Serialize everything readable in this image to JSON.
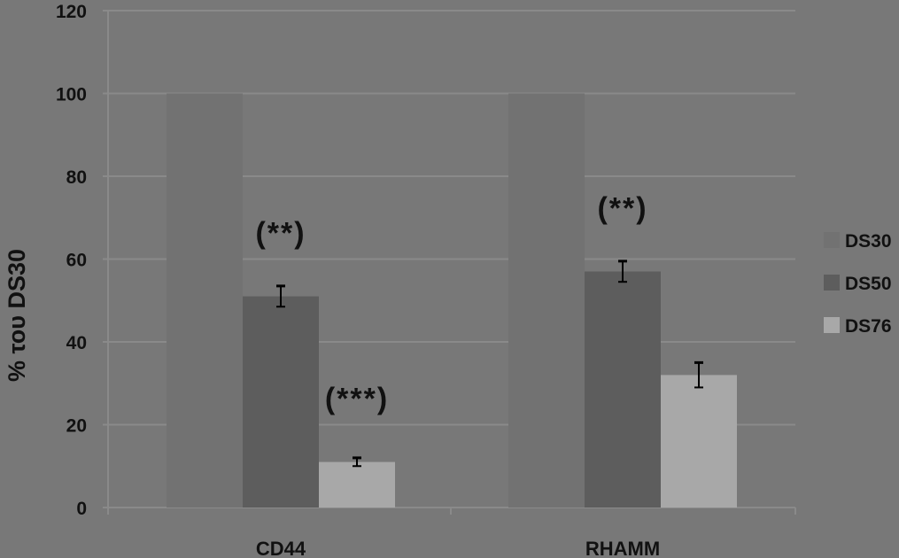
{
  "chart_data": {
    "type": "bar",
    "title": "",
    "xlabel": "",
    "ylabel": "% του DS30",
    "ylim": [
      0,
      120
    ],
    "yticks": [
      0,
      20,
      40,
      60,
      80,
      100,
      120
    ],
    "grid": true,
    "legend_position": "right",
    "categories": [
      "CD44",
      "RHAMM"
    ],
    "series": [
      {
        "name": "DS30",
        "values": [
          100,
          100
        ],
        "errors": [
          0,
          0
        ],
        "color": "#727272"
      },
      {
        "name": "DS50",
        "values": [
          51,
          57
        ],
        "errors": [
          2.5,
          2.5
        ],
        "color": "#5d5d5d"
      },
      {
        "name": "DS76",
        "values": [
          11,
          32
        ],
        "errors": [
          1,
          3
        ],
        "color": "#a8a8a8"
      }
    ],
    "annotations": [
      {
        "text": "(**)",
        "category": "CD44",
        "series": "DS50"
      },
      {
        "text": "(***)",
        "category": "CD44",
        "series": "DS76"
      },
      {
        "text": "(**)",
        "category": "RHAMM",
        "series": "DS50"
      }
    ]
  }
}
